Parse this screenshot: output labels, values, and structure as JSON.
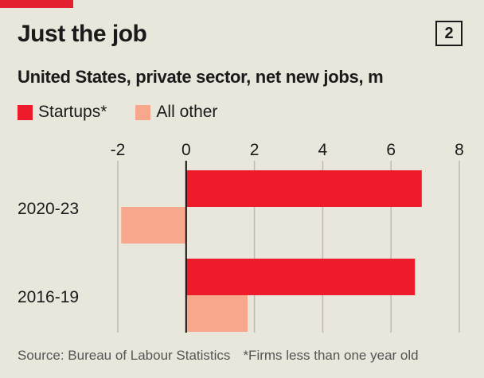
{
  "header": {
    "title": "Just the job",
    "chart_number": "2",
    "subtitle": "United States, private sector, net new jobs, m"
  },
  "footer": {
    "source": "Source: Bureau of Labour Statistics",
    "note": "*Firms less than one year old"
  },
  "colors": {
    "accent": "#e3202e",
    "startups": "#ee1c2a",
    "other": "#f7a78c",
    "grid": "#bdbab0",
    "zero": "#111111"
  },
  "chart_data": {
    "type": "bar",
    "orientation": "horizontal",
    "title": "Just the job",
    "subtitle": "United States, private sector, net new jobs, m",
    "categories": [
      "2020-23",
      "2016-19"
    ],
    "series": [
      {
        "name": "Startups*",
        "values": [
          6.9,
          6.7
        ]
      },
      {
        "name": "All other",
        "values": [
          -1.9,
          1.8
        ]
      }
    ],
    "xlim": [
      -2,
      8
    ],
    "x_ticks": [
      "-2",
      "0",
      "2",
      "4",
      "6",
      "8"
    ],
    "grid": true,
    "legend": "top-left"
  }
}
